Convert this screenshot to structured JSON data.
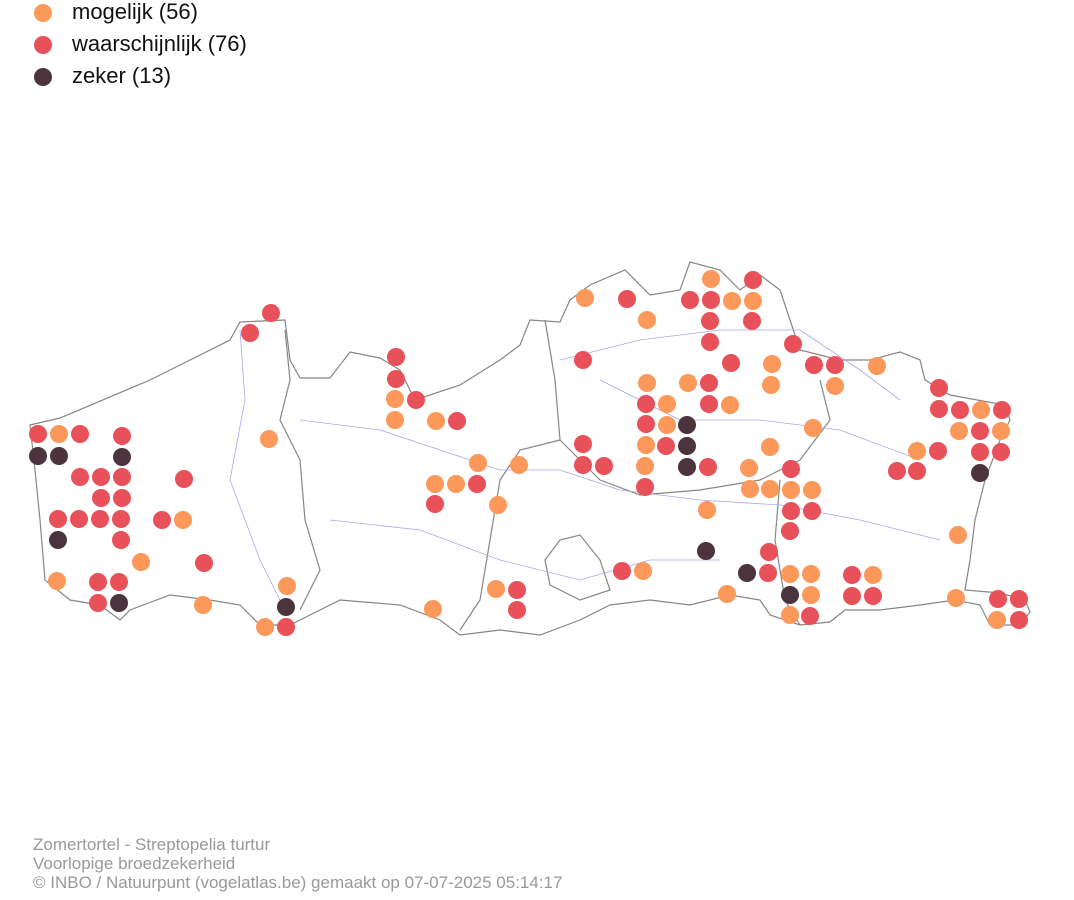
{
  "legend": [
    {
      "label": "mogelijk (56)",
      "color": "#fb985a"
    },
    {
      "label": "waarschijnlijk (76)",
      "color": "#e8515a"
    },
    {
      "label": "zeker (13)",
      "color": "#4b343d"
    }
  ],
  "footer": [
    "Zomertortel - Streptopelia turtur",
    "Voorlopige broedzekerheid",
    "© INBO / Natuurpunt (vogelatlas.be) gemaakt op 07-07-2025 05:14:17"
  ]
}
